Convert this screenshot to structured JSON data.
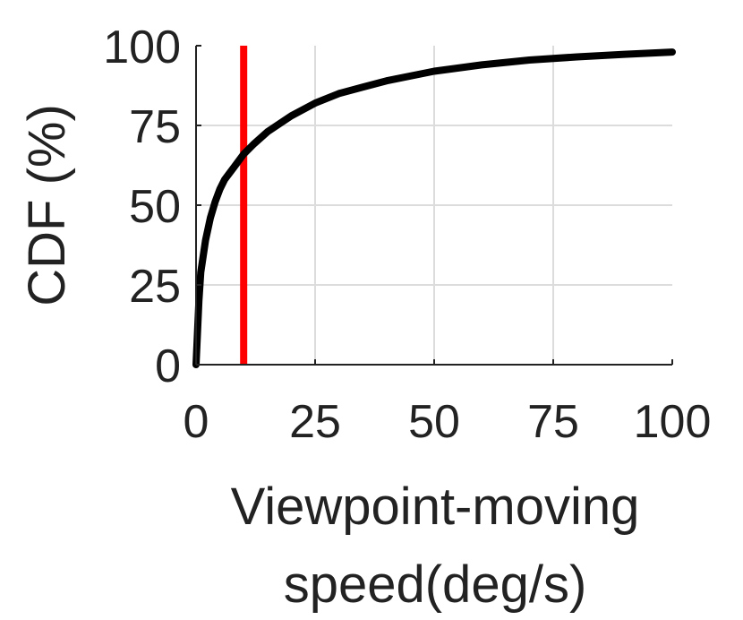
{
  "chart_data": {
    "type": "line",
    "xlabel_lines": [
      "Viewpoint-moving",
      "speed(deg/s)"
    ],
    "ylabel": "CDF (%)",
    "xlim": [
      0,
      100
    ],
    "ylim": [
      0,
      100
    ],
    "xticks": [
      0,
      25,
      50,
      75,
      100
    ],
    "yticks": [
      0,
      25,
      50,
      75,
      100
    ],
    "grid": true,
    "series": [
      {
        "color": "#000000",
        "x": [
          0,
          0.3,
          0.6,
          1,
          2,
          3,
          4,
          5,
          6,
          8,
          10,
          12,
          15,
          20,
          25,
          30,
          35,
          40,
          50,
          60,
          70,
          80,
          90,
          100
        ],
        "y": [
          0,
          10,
          20,
          29,
          39,
          46,
          51,
          55,
          58,
          62,
          66,
          69,
          73,
          78,
          82,
          85,
          87,
          89,
          92,
          94,
          95.5,
          96.5,
          97.3,
          98
        ]
      }
    ],
    "vlines": [
      {
        "x": 10,
        "color": "#ff0000"
      }
    ]
  }
}
